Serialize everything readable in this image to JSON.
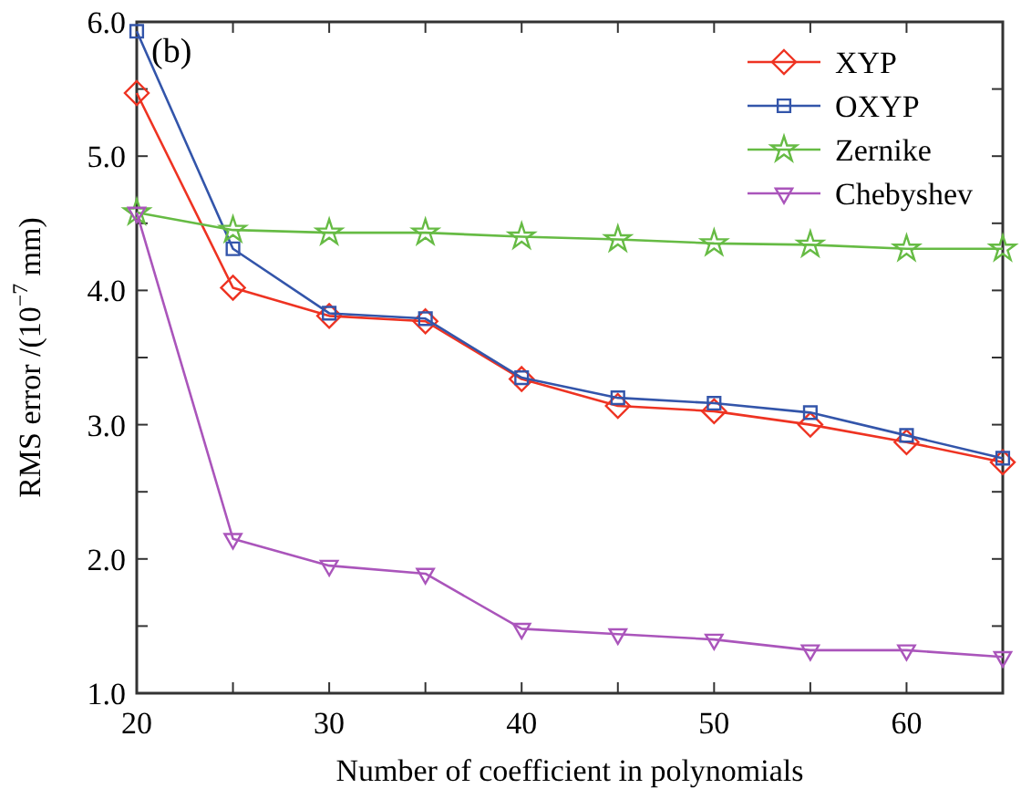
{
  "chart_data": {
    "type": "line",
    "xlabel": "Number of coefficient in polynomials",
    "ylabel": "RMS error /(10$^{−7}$ mm)",
    "annotations": [
      "(b)"
    ],
    "x": [
      20,
      25,
      30,
      35,
      40,
      45,
      50,
      55,
      60,
      65
    ],
    "xlim": [
      20,
      65
    ],
    "xticks": [
      20,
      {
        "value": 25,
        "label": null
      },
      30,
      {
        "value": 35,
        "label": null
      },
      40,
      {
        "value": 45,
        "label": null
      },
      50,
      {
        "value": 55,
        "label": null
      },
      60,
      {
        "value": 65,
        "label": null
      }
    ],
    "ylim": [
      1,
      6
    ],
    "yticks": [
      {
        "value": 1,
        "label": "1.0"
      },
      {
        "value": 1.5,
        "label": null
      },
      {
        "value": 2,
        "label": "2.0"
      },
      {
        "value": 2.5,
        "label": null
      },
      {
        "value": 3,
        "label": "3.0"
      },
      {
        "value": 3.5,
        "label": null
      },
      {
        "value": 4,
        "label": "4.0"
      },
      {
        "value": 4.5,
        "label": null
      },
      {
        "value": 5,
        "label": "5.0"
      },
      {
        "value": 5.5,
        "label": null
      },
      {
        "value": 6,
        "label": "6.0"
      }
    ],
    "grid": false,
    "legend": "top right",
    "line_style": "solid",
    "series": [
      {
        "name": "XYP",
        "color": "#ee3322",
        "marker": "diamond",
        "values": [
          5.47,
          4.02,
          3.81,
          3.77,
          3.34,
          3.14,
          3.1,
          3.0,
          2.87,
          2.72
        ]
      },
      {
        "name": "OXYP",
        "color": "#3355aa",
        "marker": "square",
        "values": [
          5.93,
          4.31,
          3.83,
          3.79,
          3.35,
          3.2,
          3.16,
          3.09,
          2.92,
          2.75
        ]
      },
      {
        "name": "Zernike",
        "color": "#66bb44",
        "marker": "star",
        "values": [
          4.58,
          4.45,
          4.43,
          4.43,
          4.4,
          4.38,
          4.35,
          4.34,
          4.31,
          4.31
        ]
      },
      {
        "name": "Chebyshev",
        "color": "#aa55bb",
        "marker": "triangle",
        "values": [
          4.58,
          2.15,
          1.95,
          1.89,
          1.48,
          1.44,
          1.4,
          1.32,
          1.32,
          1.27
        ]
      }
    ]
  }
}
